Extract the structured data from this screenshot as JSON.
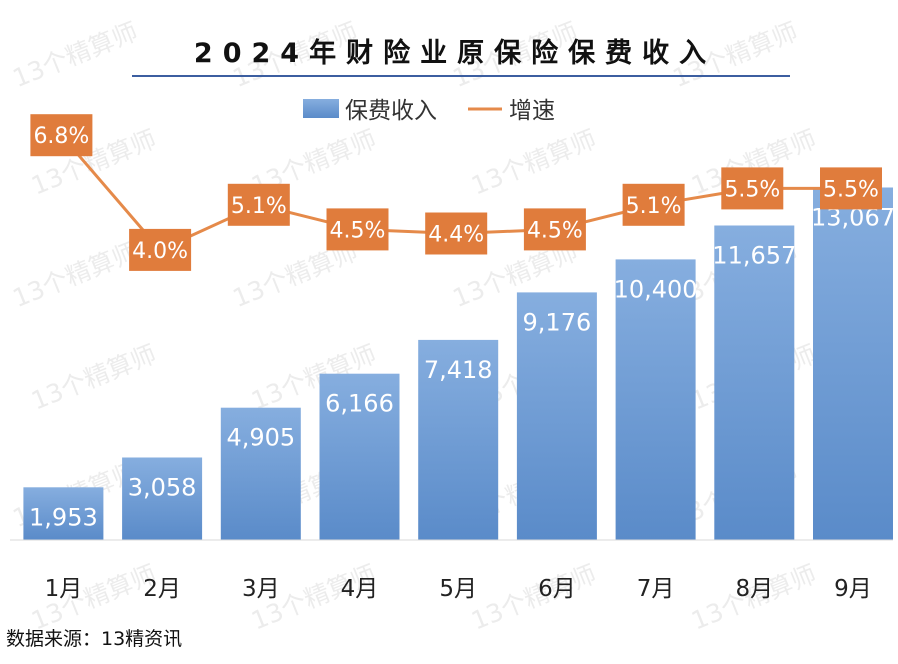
{
  "watermark": "13个精算师",
  "source_text": "数据来源：13精资讯",
  "colors": {
    "bar_top": "#86aedf",
    "bar_bottom": "#5a8bc9",
    "line": "#e58a4a",
    "label_box": "#e07c3c",
    "title_rule": "#3c5ea0"
  },
  "chart_data": {
    "type": "bar",
    "title": "2024年财险业原保险保费收入",
    "categories": [
      "1月",
      "2月",
      "3月",
      "4月",
      "5月",
      "6月",
      "7月",
      "8月",
      "9月"
    ],
    "series": [
      {
        "name": "保费收入",
        "kind": "bar",
        "values": [
          1953,
          3058,
          4905,
          6166,
          7418,
          9176,
          10400,
          11657,
          13067
        ],
        "labels": [
          "1,953",
          "3,058",
          "4,905",
          "6,166",
          "7,418",
          "9,176",
          "10,400",
          "11,657",
          "13,067"
        ]
      },
      {
        "name": "增速",
        "kind": "line",
        "values": [
          6.8,
          4.0,
          5.1,
          4.5,
          4.4,
          4.5,
          5.1,
          5.5,
          5.5
        ],
        "labels": [
          "6.8%",
          "4.0%",
          "5.1%",
          "4.5%",
          "4.4%",
          "4.5%",
          "5.1%",
          "5.5%",
          "5.5%"
        ]
      }
    ],
    "ylim": [
      0,
      13900
    ],
    "y2lim": [
      -3.2,
      9.0
    ],
    "grid": false,
    "legend": "top-center"
  }
}
